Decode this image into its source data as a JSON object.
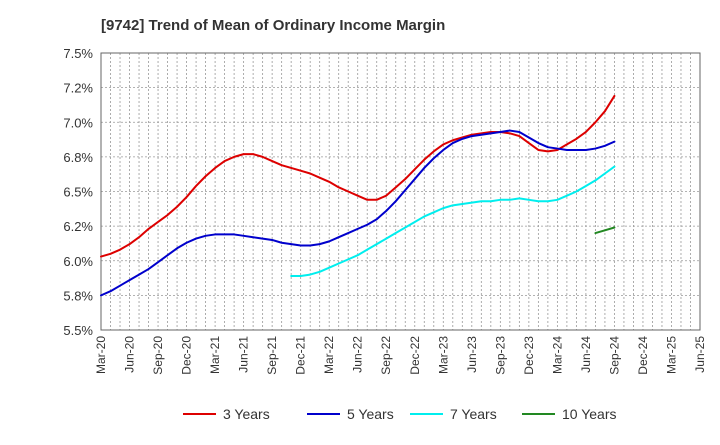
{
  "chart_data": {
    "type": "line",
    "title": "[9742]  Trend of Mean of Ordinary Income Margin",
    "xlabel": "",
    "ylabel": "",
    "x_tick_labels": [
      "Mar-20",
      "Jun-20",
      "Sep-20",
      "Dec-20",
      "Mar-21",
      "Jun-21",
      "Sep-21",
      "Dec-21",
      "Mar-22",
      "Jun-22",
      "Sep-22",
      "Dec-22",
      "Mar-23",
      "Jun-23",
      "Sep-23",
      "Dec-23",
      "Mar-24",
      "Jun-24",
      "Sep-24",
      "Dec-24",
      "Mar-25",
      "Jun-25"
    ],
    "y_tick_labels": [
      "5.5%",
      "5.8%",
      "6.0%",
      "6.2%",
      "6.5%",
      "6.8%",
      "7.0%",
      "7.2%",
      "7.5%"
    ],
    "ylim": [
      5.5,
      7.5
    ],
    "grid": true,
    "legend_position": "bottom",
    "series": [
      {
        "name": "3 Years",
        "color": "#dd0000",
        "x_index_start": 0,
        "values": [
          6.03,
          6.05,
          6.08,
          6.12,
          6.17,
          6.23,
          6.28,
          6.33,
          6.39,
          6.46,
          6.54,
          6.61,
          6.67,
          6.72,
          6.75,
          6.77,
          6.77,
          6.75,
          6.72,
          6.69,
          6.67,
          6.65,
          6.63,
          6.6,
          6.57,
          6.53,
          6.5,
          6.47,
          6.44,
          6.44,
          6.47,
          6.53,
          6.59,
          6.66,
          6.73,
          6.79,
          6.84,
          6.87,
          6.89,
          6.91,
          6.92,
          6.93,
          6.93,
          6.92,
          6.9,
          6.85,
          6.8,
          6.79,
          6.8,
          6.84,
          6.88,
          6.93,
          7.0,
          7.08,
          7.19
        ]
      },
      {
        "name": "5 Years",
        "color": "#0000cc",
        "x_index_start": 0,
        "values": [
          5.75,
          5.78,
          5.82,
          5.86,
          5.9,
          5.94,
          5.99,
          6.04,
          6.09,
          6.13,
          6.16,
          6.18,
          6.19,
          6.19,
          6.19,
          6.18,
          6.17,
          6.16,
          6.15,
          6.13,
          6.12,
          6.11,
          6.11,
          6.12,
          6.14,
          6.17,
          6.2,
          6.23,
          6.26,
          6.3,
          6.36,
          6.43,
          6.51,
          6.59,
          6.67,
          6.74,
          6.8,
          6.85,
          6.88,
          6.9,
          6.91,
          6.92,
          6.93,
          6.94,
          6.93,
          6.89,
          6.85,
          6.82,
          6.81,
          6.8,
          6.8,
          6.8,
          6.81,
          6.83,
          6.86
        ]
      },
      {
        "name": "7 Years",
        "color": "#00eeee",
        "x_index_start": 20,
        "values": [
          5.89,
          5.89,
          5.9,
          5.92,
          5.95,
          5.98,
          6.01,
          6.04,
          6.08,
          6.12,
          6.16,
          6.2,
          6.24,
          6.28,
          6.32,
          6.35,
          6.38,
          6.4,
          6.41,
          6.42,
          6.43,
          6.43,
          6.44,
          6.44,
          6.45,
          6.44,
          6.43,
          6.43,
          6.44,
          6.47,
          6.5,
          6.54,
          6.58,
          6.63,
          6.68
        ]
      },
      {
        "name": "10 Years",
        "color": "#228822",
        "x_index_start": 52,
        "values": [
          6.2,
          6.22,
          6.24
        ]
      }
    ]
  }
}
